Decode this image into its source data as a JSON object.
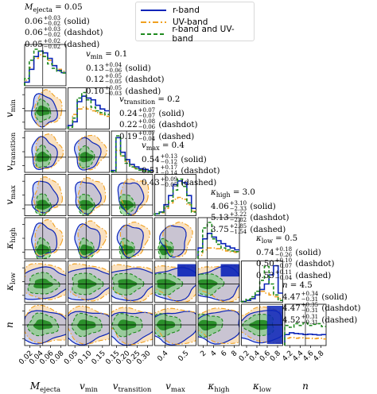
{
  "chart_data": {
    "type": "corner",
    "title": "",
    "parameters": [
      {
        "symbol": "M_ejecta",
        "label_main": "M",
        "label_sub": "ejecta",
        "ticks": [
          "0.02",
          "0.04",
          "0.06",
          "0.08"
        ],
        "range": [
          0.015,
          0.095
        ],
        "truth": 0.05
      },
      {
        "symbol": "v_min",
        "label_main": "v",
        "label_sub": "min",
        "ticks": [
          "0.05",
          "0.10",
          "0.15"
        ],
        "range": [
          0.03,
          0.19
        ],
        "truth": 0.1
      },
      {
        "symbol": "v_transition",
        "label_main": "v",
        "label_sub": "transition",
        "ticks": [
          "0.15",
          "0.20",
          "0.25",
          "0.30"
        ],
        "range": [
          0.13,
          0.32
        ],
        "truth": 0.2
      },
      {
        "symbol": "v_max",
        "label_main": "v",
        "label_sub": "max",
        "ticks": [
          "0.4",
          "0.5"
        ],
        "range": [
          0.33,
          0.6
        ],
        "truth": 0.4
      },
      {
        "symbol": "kappa_high",
        "label_main": "κ",
        "label_sub": "high",
        "ticks": [
          "2",
          "4",
          "6",
          "8"
        ],
        "range": [
          1,
          10
        ],
        "truth": 3.0
      },
      {
        "symbol": "kappa_low",
        "label_main": "κ",
        "label_sub": "low",
        "ticks": [
          "0.2",
          "0.4",
          "0.6",
          "0.8"
        ],
        "range": [
          0.1,
          1.0
        ],
        "truth": 0.5
      },
      {
        "symbol": "n",
        "label_main": "n",
        "label_sub": "",
        "ticks": [
          "4.2",
          "4.4",
          "4.6",
          "4.8"
        ],
        "range": [
          4.05,
          4.95
        ],
        "truth": 4.5
      }
    ],
    "y_axis_params": [
      1,
      2,
      3,
      4,
      5,
      6
    ],
    "series": [
      {
        "name": "r-band",
        "color": "#0a24b8",
        "style": "solid"
      },
      {
        "name": "UV-band",
        "color": "#f0a020",
        "style": "dashdot"
      },
      {
        "name": "r-band and UV-band",
        "color": "#1f8a1f",
        "style": "dashed"
      }
    ],
    "legend_position": "top-center",
    "annotations": [
      {
        "head_main": "M",
        "head_sub": "ejecta",
        "head_val": " = 0.05",
        "rows": [
          {
            "val": "0.06",
            "up": "+0.03",
            "dn": "−0.02",
            "tag": " (solid)"
          },
          {
            "val": "0.06",
            "up": "+0.03",
            "dn": "−0.02",
            "tag": " (dashdot)"
          },
          {
            "val": "0.05",
            "up": "+0.02",
            "dn": "−0.02",
            "tag": " (dashed)"
          }
        ]
      },
      {
        "head_main": "v",
        "head_sub": "min",
        "head_val": " = 0.1",
        "rows": [
          {
            "val": "0.13",
            "up": "+0.04",
            "dn": "−0.06",
            "tag": " (solid)"
          },
          {
            "val": "0.12",
            "up": "+0.05",
            "dn": "−0.05",
            "tag": " (dashdot)"
          },
          {
            "val": "0.10",
            "up": "+0.05",
            "dn": "−0.03",
            "tag": " (dashed)"
          }
        ]
      },
      {
        "head_main": "v",
        "head_sub": "transition",
        "head_val": " = 0.2",
        "rows": [
          {
            "val": "0.24",
            "up": "+0.07",
            "dn": "−0.07",
            "tag": " (solid)"
          },
          {
            "val": "0.22",
            "up": "+0.08",
            "dn": "−0.06",
            "tag": " (dashdot)"
          },
          {
            "val": "0.19",
            "up": "+0.07",
            "dn": "−0.04",
            "tag": " (dashed)"
          }
        ]
      },
      {
        "head_main": "v",
        "head_sub": "max",
        "head_val": " = 0.4",
        "rows": [
          {
            "val": "0.54",
            "up": "+0.13",
            "dn": "−0.12",
            "tag": " (solid)"
          },
          {
            "val": "0.51",
            "up": "+0.17",
            "dn": "−0.14",
            "tag": " (dashdot)"
          },
          {
            "val": "0.43",
            "up": "+0.09",
            "dn": "−0.05",
            "tag": " (dashed)"
          }
        ]
      },
      {
        "head_main": "κ",
        "head_sub": "high",
        "head_val": " = 3.0",
        "rows": [
          {
            "val": "4.06",
            "up": "+3.10",
            "dn": "−2.33",
            "tag": " (solid)"
          },
          {
            "val": "5.13",
            "up": "+3.22",
            "dn": "−2.82",
            "tag": " (dashdot)"
          },
          {
            "val": "3.75",
            "up": "+2.85",
            "dn": "−1.54",
            "tag": " (dashed)"
          }
        ]
      },
      {
        "head_main": "κ",
        "head_sub": "low",
        "head_val": " = 0.5",
        "rows": [
          {
            "val": "0.74",
            "up": "+0.18",
            "dn": "−0.26",
            "tag": " (solid)"
          },
          {
            "val": "0.50",
            "up": "+0.10",
            "dn": "−0.07",
            "tag": " (dashdot)"
          },
          {
            "val": "0.53",
            "up": "+0.11",
            "dn": "−0.04",
            "tag": " (dashed)"
          }
        ]
      },
      {
        "head_main": "n",
        "head_sub": "",
        "head_val": " = 4.5",
        "rows": [
          {
            "val": "4.47",
            "up": "+0.34",
            "dn": "−0.31",
            "tag": " (solid)"
          },
          {
            "val": "4.47",
            "up": "+0.35",
            "dn": "−0.31",
            "tag": " (dashdot)"
          },
          {
            "val": "4.52",
            "up": "+0.31",
            "dn": "−0.31",
            "tag": " (dashed)"
          }
        ]
      }
    ],
    "marginals": [
      {
        "solid": [
          0.1,
          0.45,
          0.8,
          0.95,
          0.9,
          0.75,
          0.55,
          0.42,
          0.36
        ],
        "dashdot": [
          0.15,
          0.5,
          0.75,
          0.85,
          0.8,
          0.7,
          0.55,
          0.45,
          0.4
        ],
        "dashed": [
          0.2,
          0.7,
          1.0,
          0.95,
          0.8,
          0.6,
          0.48,
          0.4,
          0.35
        ]
      },
      {
        "solid": [
          0.1,
          0.2,
          0.75,
          0.9,
          0.85,
          0.8,
          0.65,
          0.55,
          0.5
        ],
        "dashdot": [
          0.1,
          0.4,
          0.55,
          0.6,
          0.55,
          0.5,
          0.45,
          0.4,
          0.35
        ],
        "dashed": [
          0.05,
          0.3,
          0.85,
          1.0,
          0.8,
          0.6,
          0.5,
          0.45,
          0.4
        ]
      },
      {
        "solid": [
          0.05,
          0.95,
          0.55,
          0.35,
          0.22,
          0.15,
          0.1,
          0.08,
          0.05
        ],
        "dashdot": [
          0.05,
          0.6,
          0.45,
          0.3,
          0.2,
          0.12,
          0.08,
          0.05,
          0.04
        ],
        "dashed": [
          0.02,
          1.0,
          0.45,
          0.25,
          0.15,
          0.1,
          0.06,
          0.04,
          0.03
        ]
      },
      {
        "solid": [
          0.05,
          0.1,
          0.3,
          0.55,
          0.85,
          0.95,
          0.9,
          0.55,
          0.2
        ],
        "dashdot": [
          0.05,
          0.08,
          0.2,
          0.35,
          0.45,
          0.5,
          0.45,
          0.3,
          0.12
        ],
        "dashed": [
          0.05,
          0.1,
          0.25,
          0.4,
          0.7,
          1.0,
          0.8,
          0.35,
          0.1
        ]
      },
      {
        "solid": [
          0.3,
          0.55,
          0.7,
          0.6,
          0.5,
          0.42,
          0.35,
          0.3,
          0.25
        ],
        "dashdot": [
          0.1,
          0.25,
          0.3,
          0.3,
          0.28,
          0.25,
          0.22,
          0.2,
          0.18
        ],
        "dashed": [
          0.2,
          0.85,
          1.0,
          0.55,
          0.4,
          0.3,
          0.25,
          0.22,
          0.2
        ]
      },
      {
        "solid": [
          0.02,
          0.05,
          0.1,
          0.2,
          0.35,
          0.5,
          0.75,
          1.0,
          0.25
        ],
        "dashdot": [
          0.02,
          0.05,
          0.1,
          0.2,
          0.3,
          0.25,
          0.2,
          0.15,
          0.1
        ],
        "dashed": [
          0.02,
          0.08,
          0.15,
          0.3,
          0.6,
          0.98,
          0.5,
          0.2,
          0.05
        ]
      },
      {
        "solid": [
          0.3,
          0.35,
          0.33,
          0.32,
          0.3,
          0.31,
          0.3,
          0.29,
          0.3
        ],
        "dashdot": [
          0.2,
          0.22,
          0.2,
          0.21,
          0.2,
          0.2,
          0.19,
          0.2,
          0.18
        ],
        "dashed": [
          0.55,
          0.5,
          0.6,
          0.55,
          0.62,
          0.55,
          0.58,
          0.6,
          0.52
        ]
      }
    ]
  }
}
